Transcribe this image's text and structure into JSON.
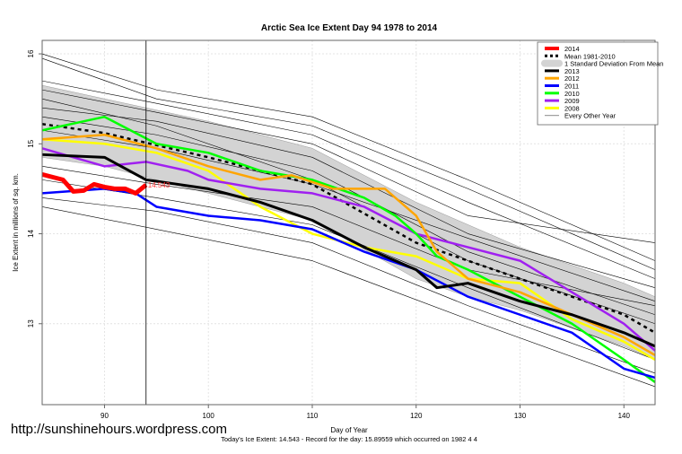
{
  "chart_data": {
    "type": "line",
    "title": "Arctic Sea Ice Extent Day 94 1978 to 2014",
    "xlabel": "Day of Year",
    "ylabel": "Ice Extent in millions of sq. km.",
    "subtitle": "Today's Ice Extent: 14.543  - Record for the day: 15.89559 which occurred on 1982 4 4",
    "xlim": [
      84,
      143
    ],
    "ylim": [
      12.1,
      16.15
    ],
    "xticks": [
      "90",
      "100",
      "110",
      "120",
      "130",
      "140"
    ],
    "yticks": [
      "13",
      "14",
      "15",
      "16"
    ],
    "grid": true,
    "legend_position": "top-right",
    "current_day": 94,
    "current_value_label": "14.543",
    "sd_band": {
      "name": "1 Standard Deviation From Mean",
      "color": "#d3d3d3",
      "x": [
        84,
        90,
        100,
        110,
        120,
        125,
        130,
        135,
        140,
        143
      ],
      "upper": [
        15.65,
        15.5,
        15.25,
        14.95,
        14.35,
        14.1,
        13.85,
        13.65,
        13.45,
        13.3
      ],
      "lower": [
        14.85,
        14.75,
        14.45,
        14.15,
        13.5,
        13.3,
        13.15,
        12.95,
        12.75,
        12.6
      ]
    },
    "series": [
      {
        "name": "Every Other Year",
        "color": "#000000",
        "width": 0.6,
        "other": true,
        "x": [
          84,
          95,
          110,
          125,
          143
        ],
        "y": [
          15.95,
          15.5,
          15.2,
          14.5,
          13.6
        ]
      },
      {
        "name": "",
        "color": "#000000",
        "width": 0.6,
        "other": true,
        "x": [
          84,
          95,
          110,
          125,
          143
        ],
        "y": [
          15.6,
          15.35,
          15.0,
          14.2,
          13.9
        ]
      },
      {
        "name": "",
        "color": "#000000",
        "width": 0.6,
        "other": true,
        "x": [
          84,
          95,
          110,
          125,
          143
        ],
        "y": [
          15.4,
          15.25,
          14.85,
          14.0,
          13.4
        ]
      },
      {
        "name": "",
        "color": "#000000",
        "width": 0.6,
        "other": true,
        "x": [
          84,
          95,
          110,
          125,
          143
        ],
        "y": [
          15.3,
          15.1,
          14.7,
          13.8,
          13.1
        ]
      },
      {
        "name": "",
        "color": "#000000",
        "width": 0.6,
        "other": true,
        "x": [
          84,
          95,
          110,
          125,
          143
        ],
        "y": [
          15.5,
          15.2,
          14.6,
          13.7,
          13.0
        ]
      },
      {
        "name": "",
        "color": "#000000",
        "width": 0.6,
        "other": true,
        "x": [
          84,
          95,
          110,
          125,
          143
        ],
        "y": [
          14.75,
          14.55,
          14.3,
          13.6,
          13.2
        ]
      },
      {
        "name": "",
        "color": "#000000",
        "width": 0.6,
        "other": true,
        "x": [
          84,
          95,
          110,
          125,
          143
        ],
        "y": [
          14.4,
          14.25,
          13.9,
          13.2,
          12.45
        ]
      },
      {
        "name": "",
        "color": "#000000",
        "width": 0.6,
        "other": true,
        "x": [
          84,
          95,
          110,
          125,
          143
        ],
        "y": [
          14.3,
          14.05,
          13.7,
          13.05,
          12.3
        ]
      },
      {
        "name": "",
        "color": "#000000",
        "width": 0.6,
        "other": true,
        "x": [
          84,
          95,
          110,
          125,
          143
        ],
        "y": [
          15.7,
          15.45,
          15.1,
          14.35,
          13.5
        ]
      },
      {
        "name": "",
        "color": "#000000",
        "width": 0.6,
        "other": true,
        "x": [
          84,
          95,
          110,
          125,
          143
        ],
        "y": [
          15.15,
          14.95,
          14.55,
          13.95,
          13.25
        ]
      },
      {
        "name": "",
        "color": "#000000",
        "width": 0.6,
        "other": true,
        "x": [
          84,
          95,
          110,
          125,
          143
        ],
        "y": [
          16.0,
          15.6,
          15.3,
          14.6,
          13.7
        ]
      },
      {
        "name": "",
        "color": "#000000",
        "width": 0.6,
        "other": true,
        "x": [
          84,
          95,
          110,
          125,
          143
        ],
        "y": [
          14.6,
          14.4,
          14.1,
          13.4,
          12.6
        ]
      },
      {
        "name": "Mean 1981-2010",
        "color": "#000000",
        "width": 2.5,
        "dash": true,
        "x": [
          84,
          90,
          100,
          110,
          120,
          125,
          130,
          135,
          140,
          143
        ],
        "y": [
          15.22,
          15.12,
          14.85,
          14.55,
          13.9,
          13.7,
          13.5,
          13.3,
          13.1,
          12.9
        ]
      },
      {
        "name": "2008",
        "color": "#ffff00",
        "width": 2.5,
        "x": [
          84,
          90,
          95,
          100,
          105,
          110,
          115,
          120,
          125,
          130,
          135,
          140,
          143
        ],
        "y": [
          15.05,
          15.0,
          14.9,
          14.7,
          14.3,
          14.0,
          13.85,
          13.75,
          13.5,
          13.45,
          13.05,
          12.8,
          12.6
        ]
      },
      {
        "name": "2009",
        "color": "#a020f0",
        "width": 2.5,
        "x": [
          84,
          90,
          94,
          98,
          100,
          105,
          110,
          115,
          120,
          125,
          130,
          135,
          140,
          143
        ],
        "y": [
          14.95,
          14.75,
          14.8,
          14.7,
          14.6,
          14.5,
          14.45,
          14.3,
          14.0,
          13.85,
          13.7,
          13.35,
          13.0,
          12.7
        ]
      },
      {
        "name": "2010",
        "color": "#00ff00",
        "width": 2.5,
        "x": [
          84,
          90,
          95,
          100,
          105,
          110,
          115,
          118,
          120,
          122,
          125,
          130,
          135,
          140,
          143
        ],
        "y": [
          15.15,
          15.3,
          15.0,
          14.9,
          14.7,
          14.6,
          14.4,
          14.2,
          14.0,
          13.75,
          13.6,
          13.3,
          13.0,
          12.6,
          12.35
        ]
      },
      {
        "name": "2011",
        "color": "#0000ff",
        "width": 2.5,
        "x": [
          84,
          90,
          93,
          95,
          100,
          105,
          110,
          115,
          120,
          125,
          130,
          135,
          140,
          143
        ],
        "y": [
          14.45,
          14.5,
          14.45,
          14.3,
          14.2,
          14.15,
          14.05,
          13.8,
          13.6,
          13.3,
          13.1,
          12.9,
          12.5,
          12.4
        ]
      },
      {
        "name": "2012",
        "color": "#ffa500",
        "width": 2.5,
        "x": [
          84,
          90,
          95,
          100,
          105,
          108,
          112,
          117,
          120,
          122,
          125,
          130,
          135,
          140,
          143
        ],
        "y": [
          15.05,
          15.1,
          14.95,
          14.75,
          14.6,
          14.65,
          14.5,
          14.5,
          14.2,
          13.8,
          13.5,
          13.35,
          13.1,
          12.85,
          12.65
        ]
      },
      {
        "name": "2013",
        "color": "#000000",
        "width": 3,
        "x": [
          84,
          90,
          94,
          100,
          105,
          110,
          115,
          120,
          122,
          125,
          130,
          135,
          140,
          143
        ],
        "y": [
          14.88,
          14.85,
          14.6,
          14.5,
          14.35,
          14.15,
          13.85,
          13.6,
          13.4,
          13.45,
          13.25,
          13.1,
          12.9,
          12.75
        ]
      },
      {
        "name": "2014",
        "color": "#ff0000",
        "width": 5,
        "x": [
          84,
          85,
          86,
          87,
          88,
          89,
          90,
          91,
          92,
          93,
          94
        ],
        "y": [
          14.66,
          14.63,
          14.6,
          14.47,
          14.48,
          14.55,
          14.52,
          14.5,
          14.5,
          14.45,
          14.543
        ]
      }
    ],
    "legend": [
      {
        "label": "2014",
        "color": "#ff0000",
        "style": "thick"
      },
      {
        "label": "Mean 1981-2010",
        "color": "#000000",
        "style": "dash"
      },
      {
        "label": "1 Standard Deviation From Mean",
        "color": "#d3d3d3",
        "style": "band"
      },
      {
        "label": "2013",
        "color": "#000000",
        "style": "line"
      },
      {
        "label": "2012",
        "color": "#ffa500",
        "style": "line"
      },
      {
        "label": "2011",
        "color": "#0000ff",
        "style": "line"
      },
      {
        "label": "2010",
        "color": "#00ff00",
        "style": "line"
      },
      {
        "label": "2009",
        "color": "#a020f0",
        "style": "line"
      },
      {
        "label": "2008",
        "color": "#ffff00",
        "style": "line"
      },
      {
        "label": "Every Other Year",
        "color": "#888888",
        "style": "thin"
      }
    ]
  },
  "watermark": "http://sunshinehours.wordpress.com"
}
